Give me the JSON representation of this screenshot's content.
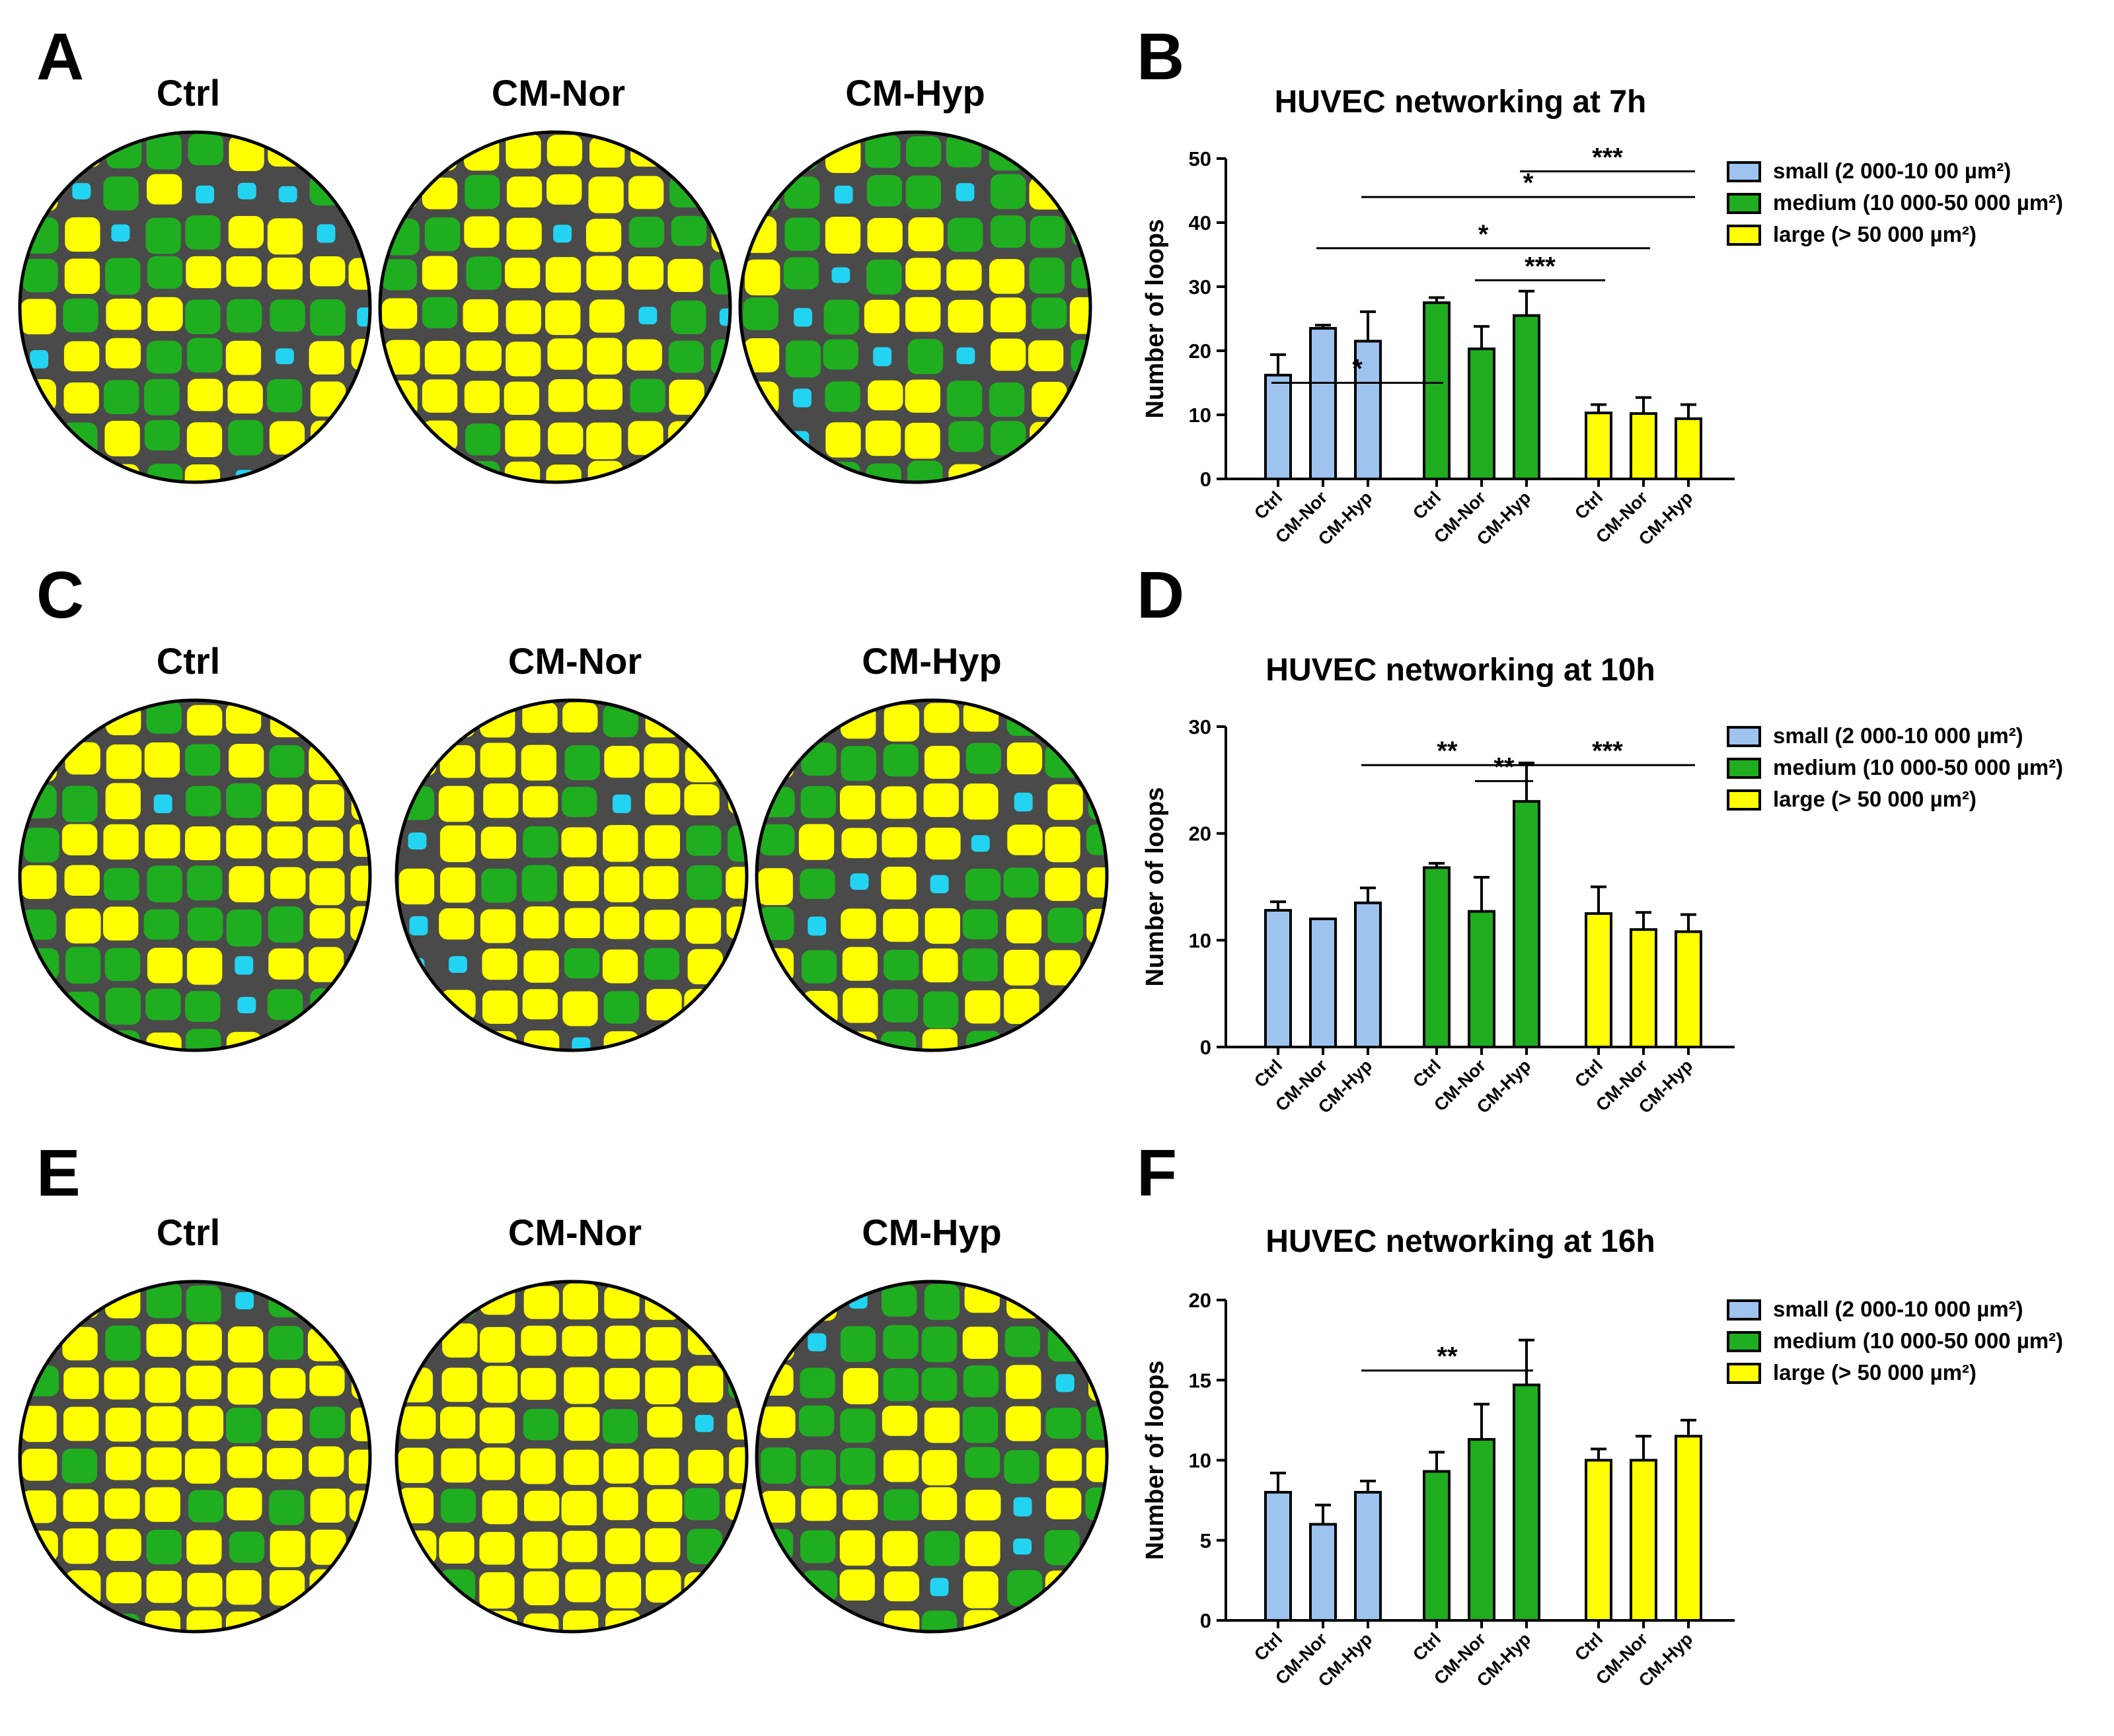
{
  "panels": {
    "A": "A",
    "B": "B",
    "C": "C",
    "D": "D",
    "E": "E",
    "F": "F"
  },
  "image_labels": [
    "Ctrl",
    "CM-Nor",
    "CM-Hyp"
  ],
  "colors": {
    "small": "#9ec3ef",
    "medium": "#1fae1f",
    "large": "#ffff00",
    "background_dark": "#4a4a4a",
    "cyan": "#22d4f2"
  },
  "chart_data": [
    {
      "type": "bar",
      "title": "HUVEC networking at 7h",
      "ylabel": "Number of loops",
      "ylim": [
        0,
        50
      ],
      "yticks": [
        "0",
        "10",
        "20",
        "30",
        "40",
        "50"
      ],
      "categories": [
        "Ctrl",
        "CM-Nor",
        "CM-Hyp"
      ],
      "series": [
        {
          "name": "small (2 000-10 00 µm²)",
          "values": [
            16.2,
            23.5,
            21.5
          ],
          "errors": [
            3.2,
            0.5,
            4.6
          ]
        },
        {
          "name": "medium (10 000-50 000 µm²)",
          "values": [
            27.5,
            20.3,
            25.5
          ],
          "errors": [
            0.8,
            3.5,
            3.8
          ]
        },
        {
          "name": "large (> 50 000 µm²)",
          "values": [
            10.3,
            10.2,
            9.4
          ],
          "errors": [
            1.3,
            2.5,
            2.2
          ]
        }
      ],
      "significance": [
        {
          "label": "*",
          "from": 0,
          "to": 3
        },
        {
          "label": "***",
          "from": 4,
          "to": 6
        },
        {
          "label": "*",
          "from": 1,
          "to": 7
        },
        {
          "label": "*",
          "from": 2,
          "to": 8
        },
        {
          "label": "***",
          "from": 5,
          "to": 8
        }
      ]
    },
    {
      "type": "bar",
      "title": "HUVEC networking at 10h",
      "ylabel": "Number of loops",
      "ylim": [
        0,
        30
      ],
      "yticks": [
        "0",
        "10",
        "20",
        "30"
      ],
      "categories": [
        "Ctrl",
        "CM-Nor",
        "CM-Hyp"
      ],
      "series": [
        {
          "name": "small (2 000-10 000 µm²)",
          "values": [
            12.8,
            12.0,
            13.5
          ],
          "errors": [
            0.8,
            0.0,
            1.4
          ]
        },
        {
          "name": "medium (10 000-50 000 µm²)",
          "values": [
            16.8,
            12.7,
            23.0
          ],
          "errors": [
            0.4,
            3.2,
            3.6
          ]
        },
        {
          "name": "large (> 50 000 µm²)",
          "values": [
            12.5,
            11.0,
            10.8
          ],
          "errors": [
            2.5,
            1.6,
            1.6
          ]
        }
      ],
      "significance": [
        {
          "label": "**",
          "from": 2,
          "to": 5
        },
        {
          "label": "**",
          "from": 4,
          "to": 5
        },
        {
          "label": "***",
          "from": 5,
          "to": 8
        }
      ]
    },
    {
      "type": "bar",
      "title": "HUVEC networking at 16h",
      "ylabel": "Number of loops",
      "ylim": [
        0,
        20
      ],
      "yticks": [
        "0",
        "5",
        "10",
        "15",
        "20"
      ],
      "categories": [
        "Ctrl",
        "CM-Nor",
        "CM-Hyp"
      ],
      "series": [
        {
          "name": "small (2 000-10 000 µm²)",
          "values": [
            8.0,
            6.0,
            8.0
          ],
          "errors": [
            1.2,
            1.2,
            0.7
          ]
        },
        {
          "name": "medium (10 000-50 000 µm²)",
          "values": [
            9.3,
            11.3,
            14.7
          ],
          "errors": [
            1.2,
            2.2,
            2.8
          ]
        },
        {
          "name": "large (> 50 000 µm²)",
          "values": [
            10.0,
            10.0,
            11.5
          ],
          "errors": [
            0.7,
            1.5,
            1.0
          ]
        }
      ],
      "significance": [
        {
          "label": "**",
          "from": 2,
          "to": 5
        }
      ]
    }
  ]
}
